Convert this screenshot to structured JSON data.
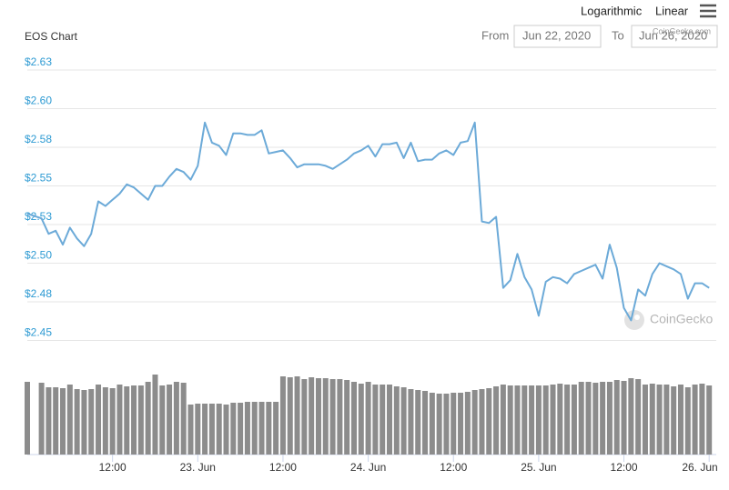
{
  "controls": {
    "scale_options": [
      "Logarithmic",
      "Linear"
    ],
    "from_label": "From",
    "from_date": "Jun 22, 2020",
    "to_label": "To",
    "to_date": "Jun 26, 2020",
    "credit": "CoinGecko.com"
  },
  "chart_data": {
    "type": "line",
    "title": "EOS Chart",
    "watermark": "CoinGecko",
    "color": "#6caad8",
    "x": [
      "2020-06-22T00:00",
      "2020-06-22T02:00",
      "2020-06-22T03:00",
      "2020-06-22T04:00",
      "2020-06-22T05:00",
      "2020-06-22T06:00",
      "2020-06-22T07:00",
      "2020-06-22T08:00",
      "2020-06-22T09:00",
      "2020-06-22T10:00",
      "2020-06-22T11:00",
      "2020-06-22T12:00",
      "2020-06-22T13:00",
      "2020-06-22T14:00",
      "2020-06-22T15:00",
      "2020-06-22T16:00",
      "2020-06-22T17:00",
      "2020-06-22T18:00",
      "2020-06-22T19:00",
      "2020-06-22T20:00",
      "2020-06-22T21:00",
      "2020-06-22T22:00",
      "2020-06-22T23:00",
      "2020-06-23T00:00",
      "2020-06-23T01:00",
      "2020-06-23T02:00",
      "2020-06-23T03:00",
      "2020-06-23T04:00",
      "2020-06-23T05:00",
      "2020-06-23T06:00",
      "2020-06-23T07:00",
      "2020-06-23T08:00",
      "2020-06-23T09:00",
      "2020-06-23T10:00",
      "2020-06-23T11:00",
      "2020-06-23T12:00",
      "2020-06-23T13:00",
      "2020-06-23T14:00",
      "2020-06-23T15:00",
      "2020-06-23T16:00",
      "2020-06-23T17:00",
      "2020-06-23T18:00",
      "2020-06-23T19:00",
      "2020-06-23T20:00",
      "2020-06-23T21:00",
      "2020-06-23T22:00",
      "2020-06-23T23:00",
      "2020-06-24T00:00",
      "2020-06-24T01:00",
      "2020-06-24T02:00",
      "2020-06-24T03:00",
      "2020-06-24T04:00",
      "2020-06-24T05:00",
      "2020-06-24T06:00",
      "2020-06-24T07:00",
      "2020-06-24T08:00",
      "2020-06-24T09:00",
      "2020-06-24T10:00",
      "2020-06-24T11:00",
      "2020-06-24T12:00",
      "2020-06-24T13:00",
      "2020-06-24T14:00",
      "2020-06-24T15:00",
      "2020-06-24T16:00",
      "2020-06-24T17:00",
      "2020-06-24T18:00",
      "2020-06-24T19:00",
      "2020-06-24T20:00",
      "2020-06-24T21:00",
      "2020-06-24T22:00",
      "2020-06-24T23:00",
      "2020-06-25T00:00",
      "2020-06-25T01:00",
      "2020-06-25T02:00",
      "2020-06-25T03:00",
      "2020-06-25T04:00",
      "2020-06-25T05:00",
      "2020-06-25T06:00",
      "2020-06-25T07:00",
      "2020-06-25T08:00",
      "2020-06-25T09:00",
      "2020-06-25T10:00",
      "2020-06-25T11:00",
      "2020-06-25T12:00",
      "2020-06-25T13:00",
      "2020-06-25T14:00",
      "2020-06-25T15:00",
      "2020-06-25T16:00",
      "2020-06-25T17:00",
      "2020-06-25T18:00",
      "2020-06-25T19:00",
      "2020-06-25T20:00",
      "2020-06-25T21:00",
      "2020-06-25T22:00",
      "2020-06-25T23:00",
      "2020-06-26T00:00"
    ],
    "values": [
      2.532,
      2.529,
      2.519,
      2.521,
      2.512,
      2.523,
      2.516,
      2.511,
      2.519,
      2.54,
      2.537,
      2.541,
      2.545,
      2.551,
      2.549,
      2.545,
      2.541,
      2.55,
      2.55,
      2.556,
      2.561,
      2.559,
      2.554,
      2.563,
      2.591,
      2.578,
      2.576,
      2.57,
      2.584,
      2.584,
      2.583,
      2.583,
      2.586,
      2.571,
      2.572,
      2.573,
      2.568,
      2.562,
      2.564,
      2.564,
      2.564,
      2.563,
      2.561,
      2.564,
      2.567,
      2.571,
      2.573,
      2.576,
      2.569,
      2.577,
      2.577,
      2.578,
      2.568,
      2.578,
      2.566,
      2.567,
      2.567,
      2.571,
      2.573,
      2.57,
      2.578,
      2.579,
      2.591,
      2.527,
      2.526,
      2.53,
      2.484,
      2.489,
      2.506,
      2.491,
      2.483,
      2.466,
      2.488,
      2.491,
      2.49,
      2.487,
      2.493,
      2.495,
      2.497,
      2.499,
      2.49,
      2.512,
      2.497,
      2.471,
      2.463,
      2.483,
      2.479,
      2.493,
      2.5,
      2.498,
      2.496,
      2.493,
      2.477,
      2.487,
      2.487,
      2.484
    ],
    "volume": {
      "color": "#8c8c8c",
      "values": [
        80,
        79,
        74,
        74,
        73,
        77,
        72,
        71,
        72,
        77,
        74,
        73,
        77,
        75,
        76,
        76,
        80,
        88,
        76,
        77,
        80,
        79,
        55,
        56,
        56,
        56,
        56,
        55,
        57,
        57,
        58,
        58,
        58,
        58,
        58,
        86,
        85,
        86,
        83,
        85,
        84,
        84,
        83,
        83,
        82,
        80,
        78,
        80,
        77,
        77,
        77,
        75,
        74,
        72,
        71,
        70,
        68,
        67,
        67,
        68,
        68,
        69,
        71,
        72,
        73,
        75,
        77,
        76,
        76,
        76,
        76,
        76,
        76,
        77,
        78,
        77,
        77,
        80,
        80,
        79,
        80,
        80,
        82,
        81,
        84,
        83,
        77,
        78,
        77,
        77,
        75,
        77,
        74,
        77,
        78,
        76
      ]
    },
    "xlim": [
      "2020-06-22T00:00",
      "2020-06-26T01:00"
    ],
    "xticks": [
      {
        "value": "2020-06-22T12:00",
        "label": "12:00"
      },
      {
        "value": "2020-06-23T00:00",
        "label": "23. Jun"
      },
      {
        "value": "2020-06-23T12:00",
        "label": "12:00"
      },
      {
        "value": "2020-06-24T00:00",
        "label": "24. Jun"
      },
      {
        "value": "2020-06-24T12:00",
        "label": "12:00"
      },
      {
        "value": "2020-06-25T00:00",
        "label": "25. Jun"
      },
      {
        "value": "2020-06-25T12:00",
        "label": "12:00"
      },
      {
        "value": "2020-06-26T00:00",
        "label": "26. Jun"
      }
    ],
    "ylim": [
      2.44,
      2.635
    ],
    "yticks": [
      {
        "value": 2.45,
        "label": "$2.45"
      },
      {
        "value": 2.475,
        "label": "$2.48"
      },
      {
        "value": 2.5,
        "label": "$2.50"
      },
      {
        "value": 2.525,
        "label": "$2.53"
      },
      {
        "value": 2.55,
        "label": "$2.55"
      },
      {
        "value": 2.575,
        "label": "$2.58"
      },
      {
        "value": 2.6,
        "label": "$2.60"
      },
      {
        "value": 2.625,
        "label": "$2.63"
      }
    ],
    "y2lim": [
      0,
      100
    ],
    "grid": true
  }
}
